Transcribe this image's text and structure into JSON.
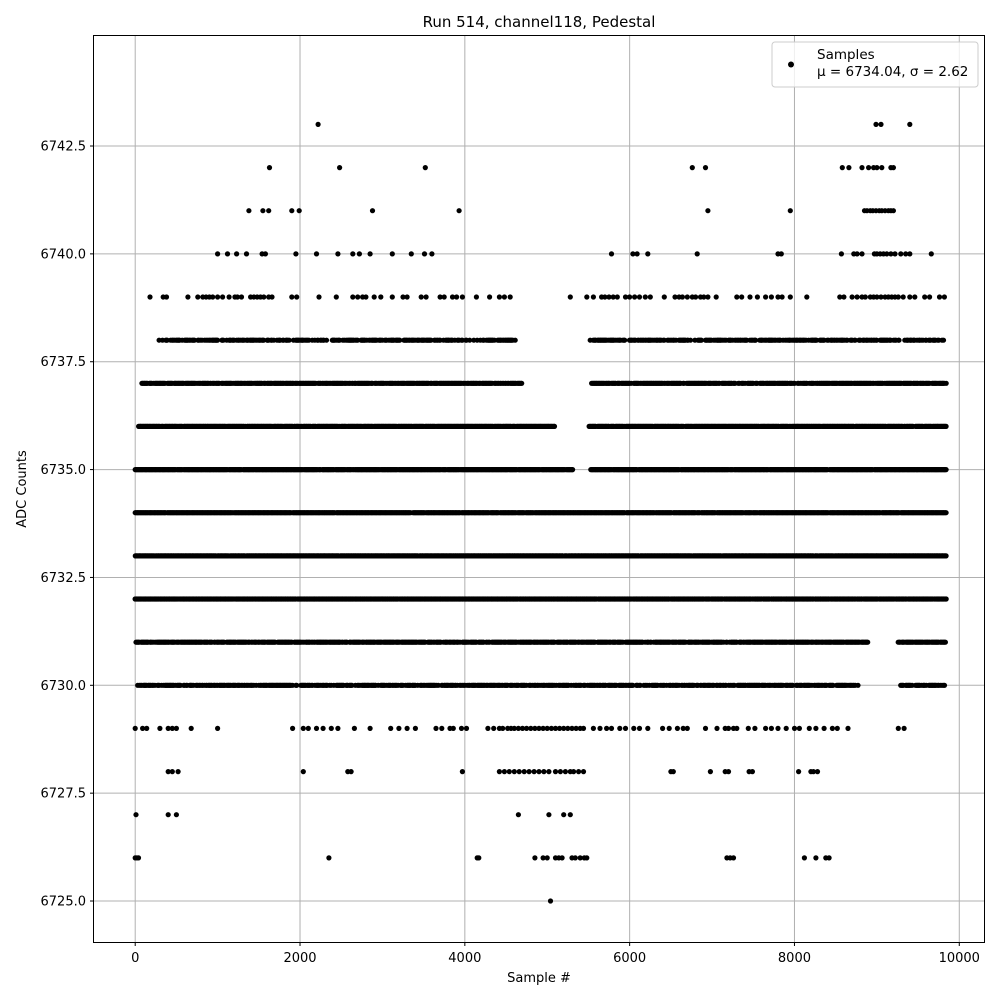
{
  "chart_data": {
    "type": "scatter",
    "title": "Run 514, channel118, Pedestal",
    "xlabel": "Sample #",
    "ylabel": "ADC Counts",
    "xlim": [
      -500,
      10300
    ],
    "ylim": [
      6724.05,
      6745.05
    ],
    "x_ticks": [
      0,
      2000,
      4000,
      6000,
      8000,
      10000
    ],
    "y_ticks": [
      6725.0,
      6727.5,
      6730.0,
      6732.5,
      6735.0,
      6737.5,
      6740.0,
      6742.5
    ],
    "x_tick_labels": [
      "0",
      "2000",
      "4000",
      "6000",
      "8000",
      "10000"
    ],
    "y_tick_labels": [
      "6725.0",
      "6727.5",
      "6730.0",
      "6732.5",
      "6735.0",
      "6737.5",
      "6740.0",
      "6742.5"
    ],
    "grid": true,
    "legend": {
      "placement": "top-right",
      "label": "Samples",
      "stats_text": "μ = 6734.04, σ = 2.62"
    },
    "marker_color": "#000000",
    "series": [
      {
        "name": "Samples",
        "approximate": true,
        "x_range": [
          0,
          9840
        ],
        "levels": [
          {
            "y": 6743,
            "x": [
              2220,
              8990,
              9050,
              9400
            ]
          },
          {
            "y": 6742,
            "x": [
              1630,
              2480,
              3520,
              6760,
              6920,
              8580,
              8660,
              8820,
              8900,
              8960,
              9000,
              9060,
              9170,
              9200
            ]
          },
          {
            "y": 6741,
            "x": [
              1380,
              1550,
              1620,
              1900,
              1990,
              2880,
              3930,
              6950,
              7950,
              8850,
              8880,
              8920,
              8950,
              8990,
              9030,
              9060,
              9100,
              9140,
              9170,
              9200
            ]
          },
          {
            "y": 6740,
            "x": [
              1000,
              1120,
              1230,
              1350,
              1540,
              1580,
              1950,
              2200,
              2460,
              2640,
              2720,
              2850,
              3120,
              3350,
              3510,
              3600,
              5780,
              6040,
              6090,
              6220,
              6820,
              7800,
              7840,
              8570,
              8720,
              8760,
              8820,
              8970,
              9000,
              9040,
              9080,
              9120,
              9170,
              9220,
              9290,
              9350,
              9400,
              9660
            ]
          },
          {
            "y": 6739,
            "x": [
              180,
              340,
              380,
              640,
              760,
              820,
              860,
              900,
              940,
              1000,
              1060,
              1140,
              1210,
              1240,
              1290,
              1400,
              1440,
              1480,
              1520,
              1560,
              1620,
              1660,
              1900,
              1960,
              2230,
              2440,
              2640,
              2700,
              2760,
              2800,
              2900,
              2980,
              3120,
              3250,
              3300,
              3470,
              3530,
              3700,
              3750,
              3850,
              3900,
              3970,
              4140,
              4300,
              4420,
              4480,
              4550,
              5280,
              5480,
              5560,
              5660,
              5700,
              5750,
              5800,
              5850,
              5950,
              6000,
              6060,
              6120,
              6190,
              6250,
              6420,
              6550,
              6600,
              6640,
              6700,
              6760,
              6800,
              6860,
              6900,
              6950,
              7050,
              7300,
              7360,
              7460,
              7550,
              7650,
              7720,
              7800,
              7850,
              7950,
              8150,
              8550,
              8600,
              8700,
              8760,
              8820,
              8860,
              8920,
              8960,
              9000,
              9050,
              9100,
              9140,
              9180,
              9220,
              9260,
              9320,
              9400,
              9460,
              9580,
              9640,
              9760,
              9820
            ]
          }
        ],
        "dense_bands": [
          {
            "y": 6738,
            "x_start": 280,
            "x_end": 9840,
            "density": 0.6,
            "gaps": [
              [
                4620,
                5480
              ]
            ]
          },
          {
            "y": 6737,
            "x_start": 80,
            "x_end": 9840,
            "density": 0.85,
            "gaps": [
              [
                4700,
                5530
              ]
            ]
          },
          {
            "y": 6736,
            "x_start": 40,
            "x_end": 9840,
            "density": 0.95,
            "gaps": [
              [
                5100,
                5500
              ]
            ]
          },
          {
            "y": 6735,
            "x_start": 0,
            "x_end": 9840,
            "density": 0.97,
            "gaps": [
              [
                5320,
                5520
              ]
            ]
          },
          {
            "y": 6734,
            "x_start": 0,
            "x_end": 9840,
            "density": 0.98,
            "gaps": []
          },
          {
            "y": 6733,
            "x_start": 0,
            "x_end": 9840,
            "density": 0.98,
            "gaps": []
          },
          {
            "y": 6732,
            "x_start": 0,
            "x_end": 9840,
            "density": 0.98,
            "gaps": []
          },
          {
            "y": 6731,
            "x_start": 0,
            "x_end": 9840,
            "density": 0.85,
            "gaps": [
              [
                8900,
                9250
              ]
            ]
          },
          {
            "y": 6730,
            "x_start": 0,
            "x_end": 9840,
            "density": 0.7,
            "gaps": [
              [
                8800,
                9280
              ]
            ]
          }
        ],
        "sparse_points": [
          {
            "y": 6729,
            "x": [
              0,
              90,
              140,
              300,
              400,
              450,
              500,
              680,
              1000,
              1910,
              2040,
              2100,
              2200,
              2280,
              2380,
              2460,
              2660,
              2850,
              3100,
              3200,
              3300,
              3400,
              3650,
              3720,
              3820,
              3860,
              3960,
              4020,
              4280,
              4350,
              4420,
              4460,
              4520,
              4560,
              4600,
              4650,
              4700,
              4750,
              4800,
              4850,
              4900,
              4950,
              5000,
              5050,
              5100,
              5150,
              5200,
              5250,
              5300,
              5350,
              5400,
              5440,
              5560,
              5640,
              5720,
              5780,
              5880,
              5950,
              6050,
              6120,
              6220,
              6400,
              6480,
              6580,
              6650,
              6700,
              6920,
              7060,
              7160,
              7200,
              7260,
              7300,
              7440,
              7520,
              7650,
              7720,
              7800,
              7900,
              8000,
              8060,
              8180,
              8260,
              8360,
              8460,
              8520,
              8650,
              9260,
              9330
            ]
          },
          {
            "y": 6728,
            "x": [
              400,
              450,
              520,
              2040,
              2580,
              2620,
              3970,
              4420,
              4480,
              4540,
              4600,
              4660,
              4720,
              4780,
              4840,
              4900,
              4960,
              5020,
              5100,
              5160,
              5220,
              5280,
              5320,
              5380,
              5440,
              6500,
              6530,
              6980,
              7160,
              7200,
              7450,
              7490,
              8050,
              8200,
              8230,
              8280
            ]
          },
          {
            "y": 6727,
            "x": [
              10,
              400,
              500,
              4650,
              5020,
              5200,
              5280
            ]
          },
          {
            "y": 6726,
            "x": [
              0,
              20,
              40,
              2350,
              4150,
              4170,
              4850,
              4950,
              5000,
              5100,
              5140,
              5180,
              5300,
              5340,
              5400,
              5450,
              5480,
              7180,
              7220,
              7260,
              8120,
              8260,
              8380,
              8420
            ]
          },
          {
            "y": 6725,
            "x": [
              5040
            ]
          }
        ]
      }
    ]
  }
}
